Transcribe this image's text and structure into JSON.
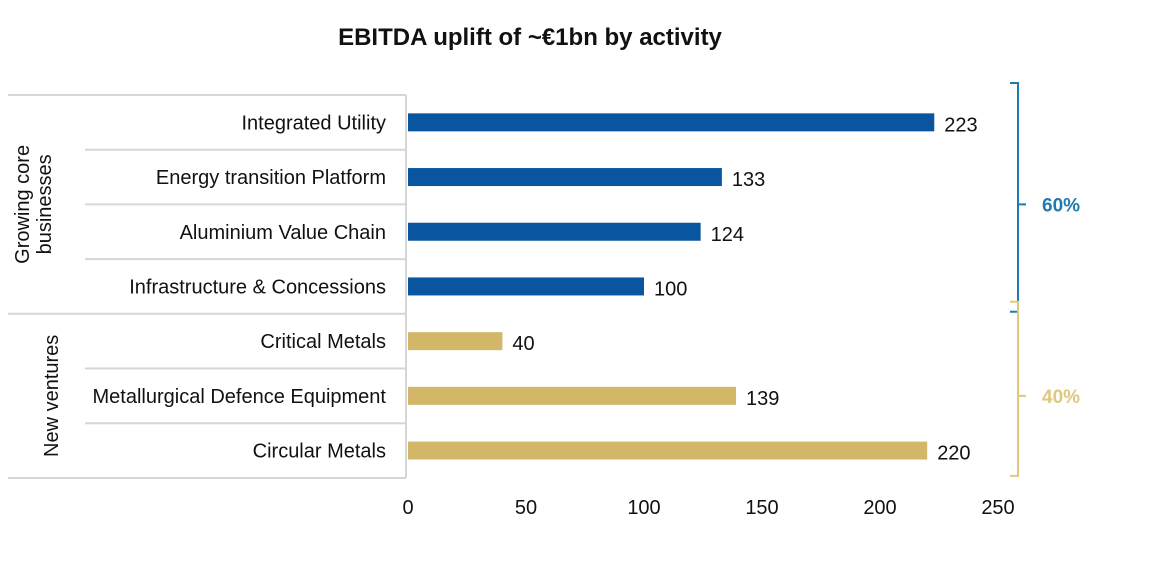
{
  "chart_data": {
    "type": "bar",
    "orientation": "horizontal",
    "title": "EBITDA uplift of ~€1bn by activity",
    "xlim": [
      0,
      250
    ],
    "x_ticks": [
      0,
      50,
      100,
      150,
      200,
      250
    ],
    "x_tick_labels": [
      "0",
      "50",
      "100",
      "150",
      "200",
      "250"
    ],
    "categories": [
      "Integrated Utility",
      "Energy transition Platform",
      "Aluminium Value Chain",
      "Infrastructure & Concessions",
      "Critical Metals",
      "Metallurgical Defence Equipment",
      "Circular Metals"
    ],
    "values": [
      223,
      133,
      124,
      100,
      40,
      139,
      220
    ],
    "value_labels": [
      "223",
      "133",
      "124",
      "100",
      "40",
      "139",
      "220"
    ],
    "groups": [
      {
        "label_lines": [
          "Growing core",
          "businesses"
        ],
        "categories": [
          0,
          1,
          2,
          3
        ],
        "color": "#0a55a0",
        "share": "60%",
        "share_color": "#1f7ab0"
      },
      {
        "label_lines": [
          "New ventures"
        ],
        "categories": [
          4,
          5,
          6
        ],
        "color": "#d2b769",
        "share": "40%",
        "share_color": "#dfc77c"
      }
    ],
    "grid": false,
    "legend": "none"
  }
}
